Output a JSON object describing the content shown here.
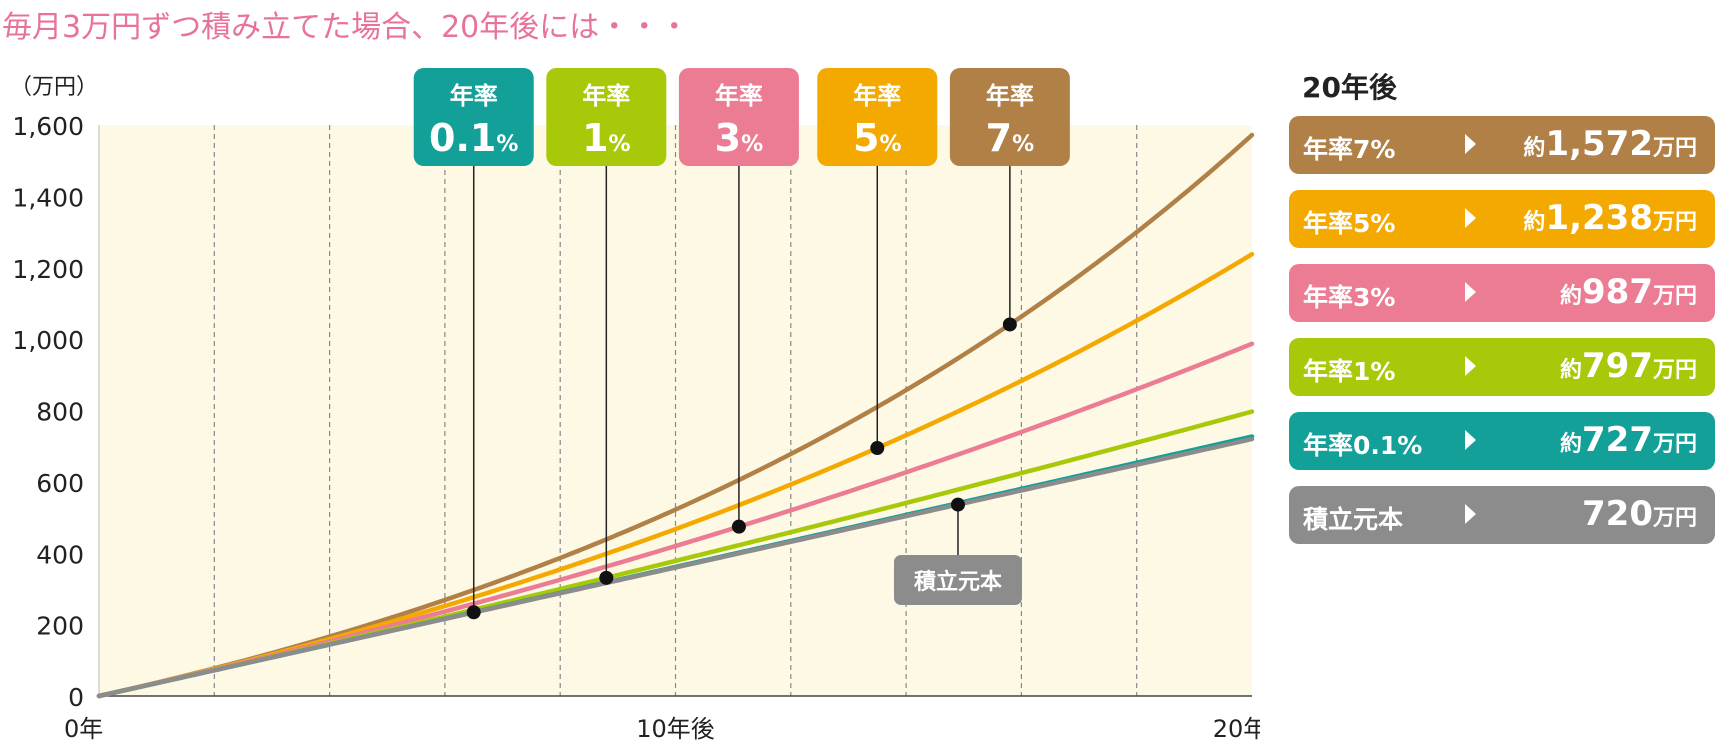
{
  "headline": "毎月3万円ずつ積み立てた場合、20年後には・・・",
  "colors": {
    "rate7": "#b08047",
    "rate5": "#f3a900",
    "rate3": "#ec7b94",
    "rate1": "#a8c80a",
    "rate01": "#13a098",
    "principal": "#8c8c8c",
    "plot_bg": "#fdf9e4",
    "headline": "#e8739a"
  },
  "result_panel": {
    "title": "20年後",
    "rows": [
      {
        "rate": "年率7%",
        "prefix": "約",
        "amount": "1,572",
        "unit": "万円",
        "color": "#b08047"
      },
      {
        "rate": "年率5%",
        "prefix": "約",
        "amount": "1,238",
        "unit": "万円",
        "color": "#f3a900"
      },
      {
        "rate": "年率3%",
        "prefix": "約",
        "amount": "987",
        "unit": "万円",
        "color": "#ec7b94"
      },
      {
        "rate": "年率1%",
        "prefix": "約",
        "amount": "797",
        "unit": "万円",
        "color": "#a8c80a"
      },
      {
        "rate": "年率0.1%",
        "prefix": "約",
        "amount": "727",
        "unit": "万円",
        "color": "#13a098"
      },
      {
        "rate": "積立元本",
        "prefix": "",
        "amount": "720",
        "unit": "万円",
        "color": "#8c8c8c"
      }
    ]
  },
  "chart_data": {
    "type": "line",
    "title": "",
    "ylabel": "（万円）",
    "xlabel": "",
    "x_tick_labels": [
      "0年",
      "10年後",
      "20年後"
    ],
    "x_ticks": [
      0,
      10,
      20
    ],
    "y_ticks": [
      0,
      200,
      400,
      600,
      800,
      1000,
      1200,
      1400,
      1600
    ],
    "y_tick_labels": [
      "0",
      "200",
      "400",
      "600",
      "800",
      "1,000",
      "1,200",
      "1,400",
      "1,600"
    ],
    "xlim": [
      0,
      20
    ],
    "ylim": [
      0,
      1600
    ],
    "grid": "vertical dashed, every 2 years",
    "monthly_contribution": 3,
    "series": [
      {
        "name": "年率7%",
        "rate": 7,
        "color": "#b08047",
        "final": 1572,
        "callout": {
          "label_top": "年率",
          "label_main": "7",
          "label_unit": "%",
          "point_year": 15.8
        }
      },
      {
        "name": "年率5%",
        "rate": 5,
        "color": "#f3a900",
        "final": 1238,
        "callout": {
          "label_top": "年率",
          "label_main": "5",
          "label_unit": "%",
          "point_year": 13.5
        }
      },
      {
        "name": "年率3%",
        "rate": 3,
        "color": "#ec7b94",
        "final": 987,
        "callout": {
          "label_top": "年率",
          "label_main": "3",
          "label_unit": "%",
          "point_year": 11.1
        }
      },
      {
        "name": "年率1%",
        "rate": 1,
        "color": "#a8c80a",
        "final": 797,
        "callout": {
          "label_top": "年率",
          "label_main": "1",
          "label_unit": "%",
          "point_year": 8.8
        }
      },
      {
        "name": "年率0.1%",
        "rate": 0.1,
        "color": "#13a098",
        "final": 727,
        "callout": {
          "label_top": "年率",
          "label_main": "0.1",
          "label_unit": "%",
          "point_year": 6.5
        }
      },
      {
        "name": "積立元本",
        "rate": 0,
        "color": "#8c8c8c",
        "final": 720,
        "callout": {
          "label_top": "",
          "label_main": "積立元本",
          "label_unit": "",
          "point_year": 14.9
        }
      }
    ]
  }
}
